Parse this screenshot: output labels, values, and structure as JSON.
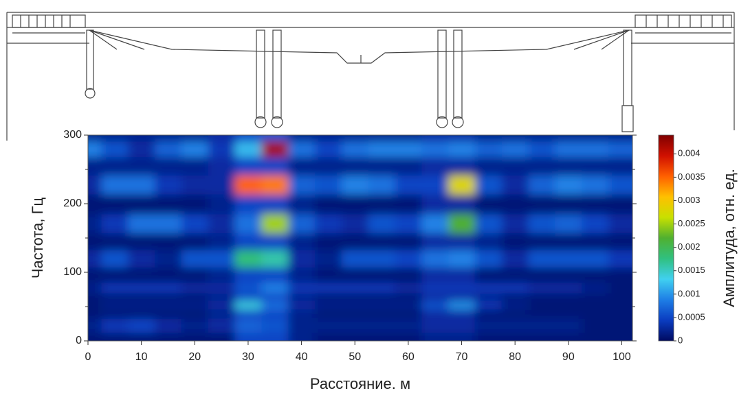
{
  "chart_data": {
    "type": "heatmap",
    "xlabel": "Расстояние. м",
    "ylabel": "Частота, Гц",
    "xlim": [
      0,
      102
    ],
    "xticks": [
      0,
      10,
      20,
      30,
      40,
      50,
      60,
      70,
      80,
      90,
      100
    ],
    "ylim": [
      0,
      300
    ],
    "yticks": [
      0,
      100,
      200,
      300
    ],
    "yminorticks": [
      50,
      150,
      250
    ],
    "x": [
      0,
      5,
      10,
      15,
      20,
      25,
      30,
      35,
      40,
      45,
      50,
      55,
      60,
      65,
      70,
      75,
      80,
      85,
      90,
      95,
      100
    ],
    "y": [
      0,
      25,
      40,
      52,
      65,
      75,
      95,
      120,
      145,
      170,
      200,
      228,
      255,
      282,
      300
    ],
    "values": [
      [
        0.0001,
        0.0001,
        0.0001,
        0.0001,
        0.0001,
        0.0001,
        0.0005,
        0.0005,
        0.0002,
        0.0001,
        0.0001,
        0.0001,
        0.0001,
        0.0002,
        0.0002,
        0.0001,
        0.0001,
        0.0001,
        0.0001,
        0.0001,
        0.0001
      ],
      [
        0.0002,
        0.0004,
        0.0005,
        0.0003,
        0.0002,
        0.0003,
        0.0007,
        0.0006,
        0.0002,
        0.0002,
        0.0002,
        0.0002,
        0.0002,
        0.0003,
        0.0003,
        0.0002,
        0.0002,
        0.0002,
        0.0002,
        0.0001,
        0.0001
      ],
      [
        0.0001,
        0.0001,
        0.0001,
        0.0001,
        0.0001,
        0.0002,
        0.0005,
        0.0005,
        0.0002,
        0.0001,
        0.0001,
        0.0001,
        0.0001,
        0.0003,
        0.0003,
        0.0001,
        0.0001,
        0.0001,
        0.0001,
        0.0001,
        0.0001
      ],
      [
        0.0001,
        0.0002,
        0.0002,
        0.0002,
        0.0002,
        0.0003,
        0.0014,
        0.0008,
        0.0003,
        0.0002,
        0.0002,
        0.0002,
        0.0002,
        0.0006,
        0.001,
        0.0004,
        0.0002,
        0.0001,
        0.0001,
        0.0001,
        0.0001
      ],
      [
        0.0001,
        0.0001,
        0.0001,
        0.0001,
        0.0001,
        0.0002,
        0.0005,
        0.0005,
        0.0002,
        0.0001,
        0.0001,
        0.0001,
        0.0001,
        0.0003,
        0.0003,
        0.0002,
        0.0001,
        0.0001,
        0.0001,
        0.0001,
        0.0001
      ],
      [
        0.0002,
        0.0004,
        0.0004,
        0.0004,
        0.0003,
        0.0003,
        0.0006,
        0.0009,
        0.0004,
        0.0004,
        0.0004,
        0.0004,
        0.0003,
        0.0004,
        0.0004,
        0.0004,
        0.0004,
        0.0003,
        0.0003,
        0.0002,
        0.0001
      ],
      [
        0.0001,
        0.0001,
        0.0001,
        0.0001,
        0.0001,
        0.0002,
        0.0005,
        0.0005,
        0.0002,
        0.0001,
        0.0001,
        0.0001,
        0.0001,
        0.0003,
        0.0003,
        0.0001,
        0.0001,
        0.0001,
        0.0001,
        0.0001,
        0.0001
      ],
      [
        0.0003,
        0.0006,
        0.0003,
        0.0002,
        0.0006,
        0.0006,
        0.0018,
        0.0016,
        0.0003,
        0.0002,
        0.0006,
        0.0006,
        0.0005,
        0.0008,
        0.0009,
        0.0006,
        0.0003,
        0.0006,
        0.0006,
        0.0006,
        0.0004
      ],
      [
        0.0001,
        0.0001,
        0.0001,
        0.0001,
        0.0001,
        0.0002,
        0.0005,
        0.0005,
        0.0002,
        0.0001,
        0.0001,
        0.0001,
        0.0001,
        0.0003,
        0.0003,
        0.0002,
        0.0001,
        0.0001,
        0.0001,
        0.0001,
        0.0001
      ],
      [
        0.0002,
        0.0004,
        0.0008,
        0.0008,
        0.0005,
        0.0003,
        0.0008,
        0.0025,
        0.0007,
        0.0004,
        0.0003,
        0.0006,
        0.0005,
        0.0009,
        0.0022,
        0.0006,
        0.0003,
        0.0006,
        0.0007,
        0.0005,
        0.0003
      ],
      [
        0.0001,
        0.0001,
        0.0001,
        0.0001,
        0.0001,
        0.0002,
        0.0005,
        0.0005,
        0.0002,
        0.0001,
        0.0001,
        0.0001,
        0.0001,
        0.0003,
        0.0003,
        0.0001,
        0.0001,
        0.0001,
        0.0001,
        0.0001,
        0.0001
      ],
      [
        0.0003,
        0.0008,
        0.0008,
        0.0004,
        0.0003,
        0.0003,
        0.0035,
        0.0034,
        0.0007,
        0.0006,
        0.0009,
        0.0008,
        0.0005,
        0.0005,
        0.0028,
        0.0006,
        0.0003,
        0.0007,
        0.0009,
        0.0008,
        0.0006
      ],
      [
        0.0002,
        0.0002,
        0.0002,
        0.0002,
        0.0002,
        0.0003,
        0.0005,
        0.0005,
        0.0002,
        0.0002,
        0.0002,
        0.0002,
        0.0002,
        0.0003,
        0.0003,
        0.0002,
        0.0002,
        0.0002,
        0.0002,
        0.0002,
        0.0002
      ],
      [
        0.0009,
        0.0006,
        0.0003,
        0.0007,
        0.0009,
        0.0004,
        0.0012,
        0.0042,
        0.0008,
        0.0005,
        0.0008,
        0.0009,
        0.0009,
        0.0008,
        0.0009,
        0.0007,
        0.0008,
        0.0006,
        0.0008,
        0.0008,
        0.0007
      ],
      [
        0.0002,
        0.0002,
        0.0002,
        0.0002,
        0.0002,
        0.0003,
        0.0005,
        0.0006,
        0.0002,
        0.0002,
        0.0002,
        0.0002,
        0.0002,
        0.0003,
        0.0003,
        0.0002,
        0.0002,
        0.0002,
        0.0002,
        0.0002,
        0.0002
      ]
    ],
    "colorbar": {
      "label": "Амплитуда, отн. ед.",
      "lim": [
        0,
        0.0044
      ],
      "ticks": [
        0,
        0.0005,
        0.001,
        0.0015,
        0.002,
        0.0025,
        0.003,
        0.0035,
        0.004
      ],
      "colors": [
        "#000a60",
        "#0a3cc0",
        "#1e7ee6",
        "#40d0f0",
        "#30c080",
        "#50b030",
        "#c8e000",
        "#ffc000",
        "#ff6000",
        "#d01000",
        "#800000"
      ]
    }
  }
}
